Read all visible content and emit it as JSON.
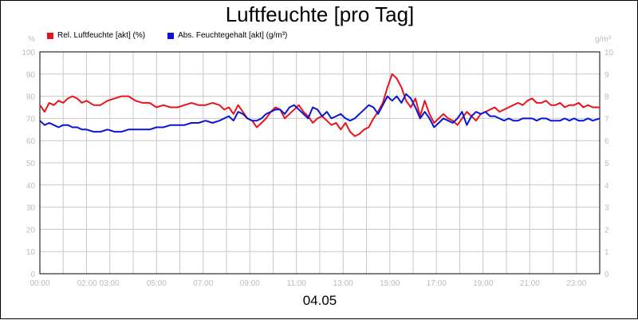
{
  "chart_data": {
    "type": "line",
    "title": "Luftfeuchte [pro Tag]",
    "date_label": "04.05",
    "left_unit": "%",
    "right_unit": "g/m³",
    "y_left_range": [
      0,
      100
    ],
    "y_right_range": [
      0,
      10
    ],
    "y_left_ticks": [
      "0",
      "10",
      "20",
      "30",
      "40",
      "50",
      "60",
      "70",
      "80",
      "90",
      "100"
    ],
    "y_right_ticks": [
      "0",
      "1",
      "2",
      "3",
      "4",
      "5",
      "6",
      "7",
      "8",
      "9",
      "10"
    ],
    "x_range_hours": [
      0,
      24
    ],
    "x_ticks": [
      {
        "hour": 0,
        "label": "00:00"
      },
      {
        "hour": 2.5,
        "label": "02:00 03:00"
      },
      {
        "hour": 5,
        "label": "05:00"
      },
      {
        "hour": 7,
        "label": "07:00"
      },
      {
        "hour": 9,
        "label": "09:00"
      },
      {
        "hour": 11,
        "label": "11:00"
      },
      {
        "hour": 13,
        "label": "13:00"
      },
      {
        "hour": 15,
        "label": "15:00"
      },
      {
        "hour": 17,
        "label": "17:00"
      },
      {
        "hour": 19,
        "label": "19:00"
      },
      {
        "hour": 21,
        "label": "21:00"
      },
      {
        "hour": 23,
        "label": "23:00"
      }
    ],
    "grid": true,
    "legend_position": "top-left",
    "series": [
      {
        "name": "Rel. Luftfeuchte [akt] (%)",
        "color": "#e8141c",
        "axis": "left",
        "points": [
          [
            0,
            76
          ],
          [
            0.2,
            73
          ],
          [
            0.4,
            77
          ],
          [
            0.6,
            76
          ],
          [
            0.8,
            78
          ],
          [
            1.0,
            77
          ],
          [
            1.2,
            79
          ],
          [
            1.4,
            80
          ],
          [
            1.6,
            79
          ],
          [
            1.8,
            77
          ],
          [
            2.0,
            78
          ],
          [
            2.3,
            76
          ],
          [
            2.6,
            76
          ],
          [
            2.9,
            78
          ],
          [
            3.2,
            79
          ],
          [
            3.5,
            80
          ],
          [
            3.8,
            80
          ],
          [
            4.1,
            78
          ],
          [
            4.4,
            77
          ],
          [
            4.7,
            77
          ],
          [
            5.0,
            75
          ],
          [
            5.3,
            76
          ],
          [
            5.6,
            75
          ],
          [
            5.9,
            75
          ],
          [
            6.2,
            76
          ],
          [
            6.5,
            77
          ],
          [
            6.8,
            76
          ],
          [
            7.1,
            76
          ],
          [
            7.4,
            77
          ],
          [
            7.7,
            76
          ],
          [
            7.9,
            74
          ],
          [
            8.1,
            75
          ],
          [
            8.3,
            72
          ],
          [
            8.5,
            76
          ],
          [
            8.7,
            73
          ],
          [
            8.9,
            70
          ],
          [
            9.1,
            69
          ],
          [
            9.3,
            66
          ],
          [
            9.5,
            68
          ],
          [
            9.7,
            70
          ],
          [
            9.9,
            73
          ],
          [
            10.1,
            75
          ],
          [
            10.3,
            74
          ],
          [
            10.5,
            70
          ],
          [
            10.7,
            72
          ],
          [
            10.9,
            74
          ],
          [
            11.1,
            76
          ],
          [
            11.3,
            73
          ],
          [
            11.5,
            71
          ],
          [
            11.7,
            68
          ],
          [
            11.9,
            70
          ],
          [
            12.1,
            71
          ],
          [
            12.3,
            69
          ],
          [
            12.5,
            67
          ],
          [
            12.7,
            68
          ],
          [
            12.9,
            65
          ],
          [
            13.1,
            68
          ],
          [
            13.3,
            64
          ],
          [
            13.5,
            62
          ],
          [
            13.7,
            63
          ],
          [
            13.9,
            65
          ],
          [
            14.1,
            66
          ],
          [
            14.3,
            70
          ],
          [
            14.5,
            73
          ],
          [
            14.7,
            77
          ],
          [
            14.9,
            84
          ],
          [
            15.1,
            90
          ],
          [
            15.3,
            88
          ],
          [
            15.5,
            84
          ],
          [
            15.7,
            78
          ],
          [
            15.9,
            75
          ],
          [
            16.1,
            79
          ],
          [
            16.3,
            71
          ],
          [
            16.5,
            78
          ],
          [
            16.7,
            72
          ],
          [
            16.9,
            68
          ],
          [
            17.1,
            70
          ],
          [
            17.3,
            72
          ],
          [
            17.5,
            70
          ],
          [
            17.7,
            69
          ],
          [
            17.9,
            67
          ],
          [
            18.1,
            70
          ],
          [
            18.3,
            73
          ],
          [
            18.5,
            71
          ],
          [
            18.7,
            69
          ],
          [
            18.9,
            72
          ],
          [
            19.1,
            73
          ],
          [
            19.3,
            74
          ],
          [
            19.5,
            75
          ],
          [
            19.7,
            73
          ],
          [
            19.9,
            74
          ],
          [
            20.1,
            75
          ],
          [
            20.3,
            76
          ],
          [
            20.5,
            77
          ],
          [
            20.7,
            76
          ],
          [
            20.9,
            78
          ],
          [
            21.1,
            79
          ],
          [
            21.3,
            77
          ],
          [
            21.5,
            77
          ],
          [
            21.7,
            78
          ],
          [
            21.9,
            76
          ],
          [
            22.1,
            76
          ],
          [
            22.3,
            77
          ],
          [
            22.5,
            75
          ],
          [
            22.7,
            76
          ],
          [
            22.9,
            76
          ],
          [
            23.1,
            77
          ],
          [
            23.3,
            75
          ],
          [
            23.5,
            76
          ],
          [
            23.7,
            75
          ],
          [
            24.0,
            75
          ]
        ]
      },
      {
        "name": "Abs. Feuchtegehalt [akt] (g/m³)",
        "color": "#0a14d8",
        "axis": "right",
        "points": [
          [
            0,
            6.9
          ],
          [
            0.2,
            6.7
          ],
          [
            0.4,
            6.8
          ],
          [
            0.6,
            6.7
          ],
          [
            0.8,
            6.6
          ],
          [
            1.0,
            6.7
          ],
          [
            1.2,
            6.7
          ],
          [
            1.4,
            6.6
          ],
          [
            1.6,
            6.6
          ],
          [
            1.8,
            6.5
          ],
          [
            2.0,
            6.5
          ],
          [
            2.3,
            6.4
          ],
          [
            2.6,
            6.4
          ],
          [
            2.9,
            6.5
          ],
          [
            3.2,
            6.4
          ],
          [
            3.5,
            6.4
          ],
          [
            3.8,
            6.5
          ],
          [
            4.1,
            6.5
          ],
          [
            4.4,
            6.5
          ],
          [
            4.7,
            6.5
          ],
          [
            5.0,
            6.6
          ],
          [
            5.3,
            6.6
          ],
          [
            5.6,
            6.7
          ],
          [
            5.9,
            6.7
          ],
          [
            6.2,
            6.7
          ],
          [
            6.5,
            6.8
          ],
          [
            6.8,
            6.8
          ],
          [
            7.1,
            6.9
          ],
          [
            7.4,
            6.8
          ],
          [
            7.7,
            6.9
          ],
          [
            7.9,
            7.0
          ],
          [
            8.1,
            7.1
          ],
          [
            8.3,
            6.9
          ],
          [
            8.5,
            7.3
          ],
          [
            8.7,
            7.2
          ],
          [
            8.9,
            7.0
          ],
          [
            9.1,
            6.9
          ],
          [
            9.3,
            6.9
          ],
          [
            9.5,
            7.0
          ],
          [
            9.7,
            7.2
          ],
          [
            9.9,
            7.3
          ],
          [
            10.1,
            7.4
          ],
          [
            10.3,
            7.4
          ],
          [
            10.5,
            7.2
          ],
          [
            10.7,
            7.5
          ],
          [
            10.9,
            7.6
          ],
          [
            11.1,
            7.4
          ],
          [
            11.3,
            7.2
          ],
          [
            11.5,
            7.0
          ],
          [
            11.7,
            7.5
          ],
          [
            11.9,
            7.4
          ],
          [
            12.1,
            7.1
          ],
          [
            12.3,
            7.3
          ],
          [
            12.5,
            7.0
          ],
          [
            12.7,
            7.1
          ],
          [
            12.9,
            7.2
          ],
          [
            13.1,
            7.0
          ],
          [
            13.3,
            6.9
          ],
          [
            13.5,
            7.0
          ],
          [
            13.7,
            7.2
          ],
          [
            13.9,
            7.4
          ],
          [
            14.1,
            7.6
          ],
          [
            14.3,
            7.5
          ],
          [
            14.5,
            7.2
          ],
          [
            14.7,
            7.6
          ],
          [
            14.9,
            8.0
          ],
          [
            15.1,
            7.8
          ],
          [
            15.3,
            8.0
          ],
          [
            15.5,
            7.7
          ],
          [
            15.7,
            8.1
          ],
          [
            15.9,
            7.9
          ],
          [
            16.1,
            7.5
          ],
          [
            16.3,
            7.0
          ],
          [
            16.5,
            7.3
          ],
          [
            16.7,
            7.0
          ],
          [
            16.9,
            6.6
          ],
          [
            17.1,
            6.8
          ],
          [
            17.3,
            7.0
          ],
          [
            17.5,
            6.9
          ],
          [
            17.7,
            6.8
          ],
          [
            17.9,
            7.0
          ],
          [
            18.1,
            7.3
          ],
          [
            18.3,
            6.7
          ],
          [
            18.5,
            7.1
          ],
          [
            18.7,
            7.3
          ],
          [
            18.9,
            7.2
          ],
          [
            19.1,
            7.3
          ],
          [
            19.3,
            7.1
          ],
          [
            19.5,
            7.1
          ],
          [
            19.7,
            7.0
          ],
          [
            19.9,
            6.9
          ],
          [
            20.1,
            7.0
          ],
          [
            20.3,
            6.9
          ],
          [
            20.5,
            6.9
          ],
          [
            20.7,
            7.0
          ],
          [
            20.9,
            7.0
          ],
          [
            21.1,
            7.0
          ],
          [
            21.3,
            6.9
          ],
          [
            21.5,
            7.0
          ],
          [
            21.7,
            7.0
          ],
          [
            21.9,
            6.9
          ],
          [
            22.1,
            6.9
          ],
          [
            22.3,
            6.9
          ],
          [
            22.5,
            7.0
          ],
          [
            22.7,
            6.9
          ],
          [
            22.9,
            7.0
          ],
          [
            23.1,
            6.9
          ],
          [
            23.3,
            6.9
          ],
          [
            23.5,
            7.0
          ],
          [
            23.7,
            6.9
          ],
          [
            24.0,
            7.0
          ]
        ]
      }
    ]
  }
}
